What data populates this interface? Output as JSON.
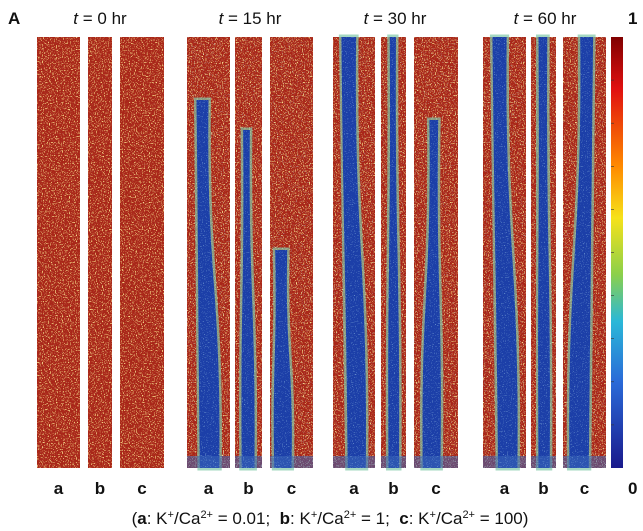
{
  "panel_label": "A",
  "groups": [
    {
      "title": [
        {
          "text": "t",
          "style": "italic"
        },
        {
          "text": " = 0 hr",
          "style": "normal"
        }
      ],
      "labels": [
        "a",
        "b",
        "c"
      ]
    },
    {
      "title": [
        {
          "text": "t",
          "style": "italic"
        },
        {
          "text": " = 15 hr",
          "style": "normal"
        }
      ],
      "labels": [
        "a",
        "b",
        "c"
      ]
    },
    {
      "title": [
        {
          "text": "t",
          "style": "italic"
        },
        {
          "text": " = 30 hr",
          "style": "normal"
        }
      ],
      "labels": [
        "a",
        "b",
        "c"
      ]
    },
    {
      "title": [
        {
          "text": "t",
          "style": "italic"
        },
        {
          "text": " = 60 hr",
          "style": "normal"
        }
      ],
      "labels": [
        "a",
        "b",
        "c"
      ]
    }
  ],
  "colorbar": {
    "max_label": "1",
    "min_label": "0"
  },
  "caption": [
    {
      "text": "(",
      "style": "normal"
    },
    {
      "text": "a",
      "style": "bold"
    },
    {
      "text": ": K",
      "style": "normal"
    },
    {
      "text": "+",
      "style": "sup"
    },
    {
      "text": "/Ca",
      "style": "normal"
    },
    {
      "text": "2+",
      "style": "sup"
    },
    {
      "text": " = 0.01;  ",
      "style": "normal"
    },
    {
      "text": "b",
      "style": "bold"
    },
    {
      "text": ": K",
      "style": "normal"
    },
    {
      "text": "+",
      "style": "sup"
    },
    {
      "text": "/Ca",
      "style": "normal"
    },
    {
      "text": "2+",
      "style": "sup"
    },
    {
      "text": " = 1;  ",
      "style": "normal"
    },
    {
      "text": "c",
      "style": "bold"
    },
    {
      "text": ": K",
      "style": "normal"
    },
    {
      "text": "+",
      "style": "sup"
    },
    {
      "text": "/Ca",
      "style": "normal"
    },
    {
      "text": "2+",
      "style": "sup"
    },
    {
      "text": " = 100)",
      "style": "normal"
    }
  ]
}
